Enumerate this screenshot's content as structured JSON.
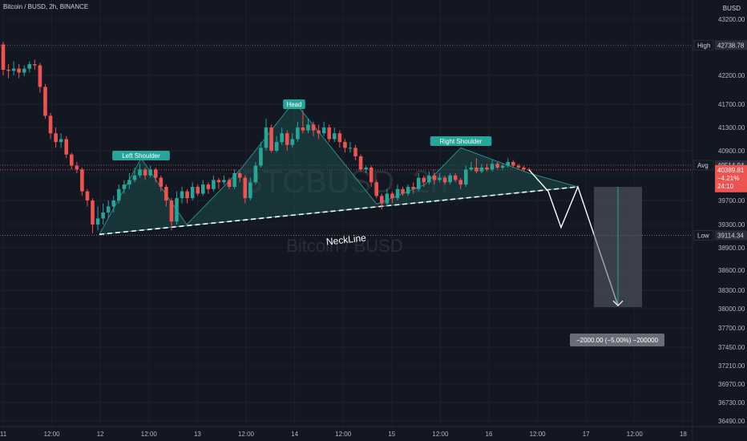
{
  "header": {
    "symbol_line": "Bitcoin / BUSD, 2h, BINANCE",
    "currency": "BUSD"
  },
  "watermark": {
    "ticker": "BTCBUSD, 2h",
    "name": "Bitcoin / BUSD"
  },
  "colors": {
    "background": "#131722",
    "up": "#26a69a",
    "down": "#ef5350",
    "pattern_fill": "#1e4d4a",
    "label_bg": "#26a69a"
  },
  "price_labels": {
    "high_tag": "High",
    "high_value": "42738.78",
    "avg_tag": "Avg",
    "avg_value": "40514.94",
    "last_value": "40389.81",
    "last_change": "−4.21%",
    "last_timer": "24:10",
    "low_tag": "Low",
    "low_value": "39114.34"
  },
  "annotations": {
    "left_shoulder": "Left Shoulder",
    "head": "Head",
    "right_shoulder": "Right Shoulder",
    "neckline": "NeckLine",
    "target_box": "−2000.00 (−5.00%) −200000"
  },
  "chart_data": {
    "type": "candlestick",
    "title": "Bitcoin / BUSD, 2h, BINANCE",
    "y_axis": {
      "ylim": [
        36430,
        43400
      ],
      "ticks": [
        "43200.00",
        "42700.00",
        "42200.00",
        "41700.00",
        "41300.00",
        "40900.00",
        "40300.00",
        "39700.00",
        "39300.00",
        "38900.00",
        "38600.00",
        "38300.00",
        "38000.00",
        "37700.00",
        "37450.00",
        "37210.00",
        "36970.00",
        "36730.00",
        "36490.00"
      ]
    },
    "x_axis": {
      "ticks": [
        "11",
        "12:00",
        "12",
        "12:00",
        "13",
        "12:00",
        "14",
        "12:00",
        "15",
        "12:00",
        "16",
        "12:00",
        "17",
        "12:00",
        "18"
      ]
    },
    "candles": [
      [
        42750,
        42300,
        42800,
        42200
      ],
      [
        42300,
        42280,
        42400,
        42150
      ],
      [
        42280,
        42320,
        42450,
        42200
      ],
      [
        42320,
        42250,
        42400,
        42150
      ],
      [
        42250,
        42320,
        42380,
        42180
      ],
      [
        42320,
        42400,
        42450,
        42250
      ],
      [
        42400,
        42380,
        42480,
        42300
      ],
      [
        42380,
        42000,
        42420,
        41900
      ],
      [
        42000,
        41500,
        42050,
        41450
      ],
      [
        41500,
        41200,
        41550,
        41100
      ],
      [
        41200,
        41050,
        41300,
        40950
      ],
      [
        41050,
        41100,
        41200,
        40950
      ],
      [
        41100,
        40800,
        41150,
        40700
      ],
      [
        40800,
        40500,
        40850,
        40400
      ],
      [
        40500,
        40400,
        40600,
        40300
      ],
      [
        40400,
        39900,
        40450,
        39800
      ],
      [
        39900,
        39700,
        39950,
        39600
      ],
      [
        39700,
        39300,
        39750,
        39150
      ],
      [
        39300,
        39400,
        39600,
        39200
      ],
      [
        39400,
        39500,
        39650,
        39300
      ],
      [
        39500,
        39600,
        39700,
        39400
      ],
      [
        39600,
        39700,
        39800,
        39500
      ],
      [
        39700,
        39950,
        40050,
        39650
      ],
      [
        39950,
        40050,
        40150,
        39850
      ],
      [
        40050,
        40150,
        40300,
        39950
      ],
      [
        40150,
        40250,
        40450,
        40100
      ],
      [
        40250,
        40400,
        40550,
        40200
      ],
      [
        40400,
        40250,
        40450,
        40150
      ],
      [
        40250,
        40400,
        40500,
        40200
      ],
      [
        40400,
        40200,
        40450,
        40100
      ],
      [
        40200,
        40000,
        40250,
        39900
      ],
      [
        40000,
        39700,
        40050,
        39600
      ],
      [
        39700,
        39350,
        39750,
        39200
      ],
      [
        39350,
        39750,
        39900,
        39300
      ],
      [
        39750,
        39900,
        40000,
        39650
      ],
      [
        39900,
        39750,
        39950,
        39650
      ],
      [
        39750,
        40000,
        40100,
        39700
      ],
      [
        40000,
        39850,
        40050,
        39800
      ],
      [
        39850,
        40050,
        40150,
        39800
      ],
      [
        40050,
        39950,
        40100,
        39850
      ],
      [
        39950,
        40150,
        40250,
        39900
      ],
      [
        40150,
        40100,
        40200,
        39950
      ],
      [
        40100,
        40150,
        40250,
        40050
      ],
      [
        40150,
        40000,
        40200,
        39950
      ],
      [
        40000,
        40300,
        40400,
        39950
      ],
      [
        40300,
        40200,
        40350,
        40100
      ],
      [
        40200,
        39750,
        40250,
        39650
      ],
      [
        39750,
        40100,
        40200,
        39700
      ],
      [
        40100,
        40500,
        40600,
        40050
      ],
      [
        40500,
        40950,
        41050,
        40450
      ],
      [
        40950,
        41300,
        41450,
        40900
      ],
      [
        41300,
        40900,
        41350,
        40850
      ],
      [
        40900,
        41050,
        41150,
        40850
      ],
      [
        41050,
        41200,
        41300,
        41000
      ],
      [
        41200,
        41000,
        41250,
        40900
      ],
      [
        41000,
        41100,
        41200,
        40950
      ],
      [
        41100,
        41300,
        41400,
        41050
      ],
      [
        41300,
        41250,
        41600,
        41200
      ],
      [
        41250,
        41350,
        41450,
        41200
      ],
      [
        41350,
        41250,
        41400,
        41150
      ],
      [
        41250,
        41200,
        41350,
        41100
      ],
      [
        41200,
        41300,
        41400,
        41150
      ],
      [
        41300,
        41100,
        41350,
        41050
      ],
      [
        41100,
        41200,
        41300,
        41050
      ],
      [
        41200,
        41050,
        41250,
        40950
      ],
      [
        41050,
        40950,
        41100,
        40850
      ],
      [
        40950,
        40950,
        41050,
        40850
      ],
      [
        40950,
        40750,
        41000,
        40650
      ],
      [
        40750,
        40400,
        40800,
        40350
      ],
      [
        40400,
        40450,
        40500,
        40300
      ],
      [
        40450,
        40100,
        40500,
        40000
      ],
      [
        40100,
        39800,
        40150,
        39750
      ],
      [
        39800,
        39650,
        39850,
        39550
      ],
      [
        39650,
        39850,
        39950,
        39600
      ],
      [
        39850,
        39750,
        39900,
        39650
      ],
      [
        39750,
        39950,
        40050,
        39700
      ],
      [
        39950,
        39850,
        40000,
        39800
      ],
      [
        39850,
        40000,
        40050,
        39800
      ],
      [
        40000,
        39950,
        40100,
        39850
      ],
      [
        39950,
        40200,
        40300,
        39900
      ],
      [
        40200,
        40100,
        40250,
        40000
      ],
      [
        40100,
        40250,
        40350,
        40050
      ],
      [
        40250,
        40150,
        40300,
        40050
      ],
      [
        40150,
        40200,
        40300,
        40100
      ],
      [
        40200,
        40100,
        40250,
        40050
      ],
      [
        40100,
        40250,
        40300,
        40050
      ],
      [
        40250,
        40150,
        40300,
        40100
      ],
      [
        40150,
        40050,
        40200,
        39950
      ],
      [
        40050,
        40400,
        40500,
        40000
      ],
      [
        40400,
        40450,
        40600,
        40350
      ],
      [
        40450,
        40350,
        40700,
        40300
      ],
      [
        40350,
        40450,
        40550,
        40300
      ],
      [
        40450,
        40400,
        40550,
        40350
      ],
      [
        40400,
        40550,
        40650,
        40350
      ],
      [
        40550,
        40450,
        40600,
        40400
      ],
      [
        40450,
        40500,
        40550,
        40400
      ],
      [
        40500,
        40600,
        40700,
        40450
      ],
      [
        40600,
        40500,
        40650,
        40450
      ],
      [
        40500,
        40450,
        40550,
        40400
      ],
      [
        40450,
        40400,
        40500,
        40350
      ],
      [
        40400,
        40390,
        40450,
        40350
      ]
    ],
    "pattern": {
      "left_shoulder_peak": 40700,
      "head_peak": 41750,
      "right_shoulder_peak": 40950,
      "neckline": [
        39130,
        40000
      ],
      "projection_end": 38050
    }
  }
}
